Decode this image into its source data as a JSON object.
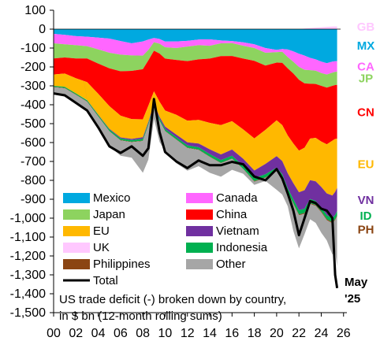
{
  "chart_data": {
    "type": "area",
    "stacked": true,
    "title": "",
    "caption_lines": [
      "US trade deficit (-) broken down by country,",
      "in $ bn (12-month rolling sums)"
    ],
    "xlabel": "",
    "ylabel": "",
    "x": [
      2000,
      2001,
      2002,
      2003,
      2004,
      2005,
      2006,
      2007,
      2008,
      2008.5,
      2009,
      2009.5,
      2010,
      2011,
      2012,
      2013,
      2014,
      2015,
      2016,
      2017,
      2018,
      2019,
      2020,
      2020.5,
      2021,
      2021.5,
      2022,
      2022.5,
      2023,
      2023.5,
      2024,
      2024.5,
      2025,
      2025.25,
      2025.42
    ],
    "x_ticks": [
      "00",
      "02",
      "04",
      "06",
      "08",
      "10",
      "12",
      "14",
      "16",
      "18",
      "20",
      "22",
      "24",
      "26"
    ],
    "x_tick_values": [
      2000,
      2002,
      2004,
      2006,
      2008,
      2010,
      2012,
      2014,
      2016,
      2018,
      2020,
      2022,
      2024,
      2026
    ],
    "xlim": [
      2000,
      2026.3
    ],
    "y_ticks": [
      "100",
      "0",
      "-100",
      "-200",
      "-300",
      "-400",
      "-500",
      "-600",
      "-700",
      "-800",
      "-900",
      "-1,000",
      "-1,100",
      "-1,200",
      "-1,300",
      "-1,400",
      "-1,500"
    ],
    "y_tick_values": [
      100,
      0,
      -100,
      -200,
      -300,
      -400,
      -500,
      -600,
      -700,
      -800,
      -900,
      -1000,
      -1100,
      -1200,
      -1300,
      -1400,
      -1500
    ],
    "ylim": [
      -1500,
      100
    ],
    "grid": false,
    "legend_placement": "bottom-left",
    "series": [
      {
        "name": "UK",
        "label": "GB",
        "color": "#ffc8ff",
        "values": [
          0,
          0,
          0,
          0,
          0,
          0,
          0,
          0,
          0,
          0,
          0,
          0,
          0,
          0,
          0,
          0,
          0,
          0,
          0,
          0,
          0,
          0,
          0,
          0,
          0,
          0,
          0,
          3,
          6,
          8,
          10,
          12,
          14,
          14,
          14
        ]
      },
      {
        "name": "Mexico",
        "label": "MX",
        "color": "#00a9e0",
        "values": [
          -25,
          -30,
          -37,
          -40,
          -45,
          -50,
          -63,
          -75,
          -65,
          -55,
          -47,
          -52,
          -66,
          -65,
          -62,
          -55,
          -54,
          -60,
          -63,
          -70,
          -80,
          -100,
          -110,
          -105,
          -108,
          -118,
          -130,
          -140,
          -152,
          -160,
          -172,
          -180,
          -172,
          -170,
          -170
        ]
      },
      {
        "name": "Canada",
        "label": "CA",
        "color": "#ff66ff",
        "values": [
          -50,
          -50,
          -48,
          -50,
          -62,
          -75,
          -72,
          -64,
          -75,
          -55,
          -22,
          -25,
          -30,
          -35,
          -30,
          -30,
          -34,
          -15,
          -11,
          -18,
          -20,
          -25,
          -12,
          -15,
          -40,
          -55,
          -70,
          -75,
          -65,
          -60,
          -60,
          -60,
          -58,
          -56,
          -55
        ]
      },
      {
        "name": "Japan",
        "label": "JP",
        "color": "#8dd35f",
        "values": [
          -80,
          -70,
          -70,
          -65,
          -75,
          -82,
          -88,
          -82,
          -72,
          -55,
          -45,
          -52,
          -60,
          -63,
          -77,
          -75,
          -68,
          -68,
          -68,
          -68,
          -68,
          -68,
          -55,
          -58,
          -60,
          -62,
          -68,
          -72,
          -72,
          -70,
          -68,
          -69,
          -70,
          -70,
          -70
        ]
      },
      {
        "name": "China",
        "label": "CN",
        "color": "#ff0000",
        "values": [
          -85,
          -85,
          -105,
          -125,
          -160,
          -200,
          -235,
          -255,
          -265,
          -240,
          -215,
          -255,
          -275,
          -290,
          -315,
          -320,
          -340,
          -365,
          -345,
          -375,
          -410,
          -340,
          -305,
          -330,
          -355,
          -370,
          -375,
          -340,
          -290,
          -285,
          -295,
          -300,
          -290,
          -285,
          -285
        ]
      },
      {
        "name": "EU",
        "label": "EU",
        "color": "#ffb800",
        "values": [
          -60,
          -70,
          -80,
          -95,
          -110,
          -120,
          -115,
          -105,
          -95,
          -85,
          -65,
          -80,
          -85,
          -105,
          -115,
          -125,
          -140,
          -155,
          -150,
          -155,
          -170,
          -180,
          -190,
          -190,
          -200,
          -210,
          -220,
          -225,
          -220,
          -230,
          -240,
          -260,
          -290,
          -280,
          -260
        ]
      },
      {
        "name": "Vietnam",
        "label": "VN",
        "color": "#7030a0",
        "values": [
          0,
          0,
          0,
          -1,
          -2,
          -4,
          -5,
          -6,
          -8,
          -8,
          -8,
          -10,
          -12,
          -14,
          -16,
          -20,
          -25,
          -30,
          -33,
          -38,
          -40,
          -55,
          -60,
          -70,
          -80,
          -85,
          -95,
          -98,
          -100,
          -104,
          -108,
          -115,
          -120,
          -122,
          -123
        ]
      },
      {
        "name": "Indonesia",
        "label": "ID",
        "color": "#00b050",
        "values": [
          -5,
          -6,
          -6,
          -6,
          -7,
          -8,
          -9,
          -9,
          -10,
          -9,
          -9,
          -10,
          -10,
          -11,
          -12,
          -12,
          -13,
          -14,
          -14,
          -15,
          -16,
          -16,
          -17,
          -18,
          -20,
          -22,
          -23,
          -23,
          -22,
          -22,
          -21,
          -22,
          -22,
          -22,
          -22
        ]
      },
      {
        "name": "Philippines",
        "label": "PH",
        "color": "#8b4513",
        "values": [
          -2,
          -2,
          -2,
          -2,
          -2,
          -2,
          -2,
          -2,
          -2,
          -2,
          -2,
          -2,
          -2,
          -2,
          -2,
          -2,
          -2,
          -2,
          -2,
          -2,
          -3,
          -3,
          -3,
          -3,
          -4,
          -4,
          -4,
          -4,
          -4,
          -4,
          -5,
          -5,
          -5,
          -5,
          -5
        ]
      },
      {
        "name": "Other",
        "label": "",
        "color": "#a6a6a6",
        "values": [
          -33,
          -37,
          -42,
          -51,
          -57,
          -79,
          -81,
          -82,
          -168,
          -181,
          -62,
          -111,
          -105,
          -124,
          -120,
          -86,
          -84,
          -72,
          -58,
          -24,
          -17,
          -16,
          -98,
          -86,
          -70,
          -142,
          -175,
          -108,
          -81,
          -90,
          -108,
          -107,
          -165,
          -166,
          -265
        ]
      }
    ],
    "total": {
      "name": "Total",
      "color": "#000000",
      "values": [
        -340,
        -350,
        -390,
        -430,
        -520,
        -620,
        -655,
        -620,
        -670,
        -630,
        -370,
        -545,
        -650,
        -700,
        -735,
        -695,
        -720,
        -720,
        -702,
        -715,
        -780,
        -800,
        -740,
        -790,
        -870,
        -960,
        -1090,
        -1000,
        -910,
        -920,
        -950,
        -960,
        -1000,
        -1300,
        -1370
      ]
    },
    "end_labels": [
      {
        "text": "GB",
        "color": "#ffc8ff",
        "value": 12
      },
      {
        "text": "MX",
        "color": "#00a9e0",
        "value": -88
      },
      {
        "text": "CA",
        "color": "#ff66ff",
        "value": -197
      },
      {
        "text": "JP",
        "color": "#8dd35f",
        "value": -260
      },
      {
        "text": "CN",
        "color": "#ff0000",
        "value": -440
      },
      {
        "text": "EU",
        "color": "#ffb800",
        "value": -715
      },
      {
        "text": "VN",
        "color": "#7030a0",
        "value": -905
      },
      {
        "text": "ID",
        "color": "#00b050",
        "value": -987
      },
      {
        "text": "PH",
        "color": "#8b4513",
        "value": -1060
      }
    ],
    "date_label": [
      "May",
      "'25"
    ],
    "legend": [
      {
        "name": "Mexico",
        "color": "#00a9e0",
        "kind": "swatch"
      },
      {
        "name": "Canada",
        "color": "#ff66ff",
        "kind": "swatch"
      },
      {
        "name": "Japan",
        "color": "#8dd35f",
        "kind": "swatch"
      },
      {
        "name": "China",
        "color": "#ff0000",
        "kind": "swatch"
      },
      {
        "name": "EU",
        "color": "#ffb800",
        "kind": "swatch"
      },
      {
        "name": "Vietnam",
        "color": "#7030a0",
        "kind": "swatch"
      },
      {
        "name": "UK",
        "color": "#ffc8ff",
        "kind": "swatch"
      },
      {
        "name": "Indonesia",
        "color": "#00b050",
        "kind": "swatch"
      },
      {
        "name": "Philippines",
        "color": "#8b4513",
        "kind": "swatch"
      },
      {
        "name": "Other",
        "color": "#a6a6a6",
        "kind": "swatch"
      },
      {
        "name": "Total",
        "color": "#000000",
        "kind": "line"
      }
    ]
  }
}
